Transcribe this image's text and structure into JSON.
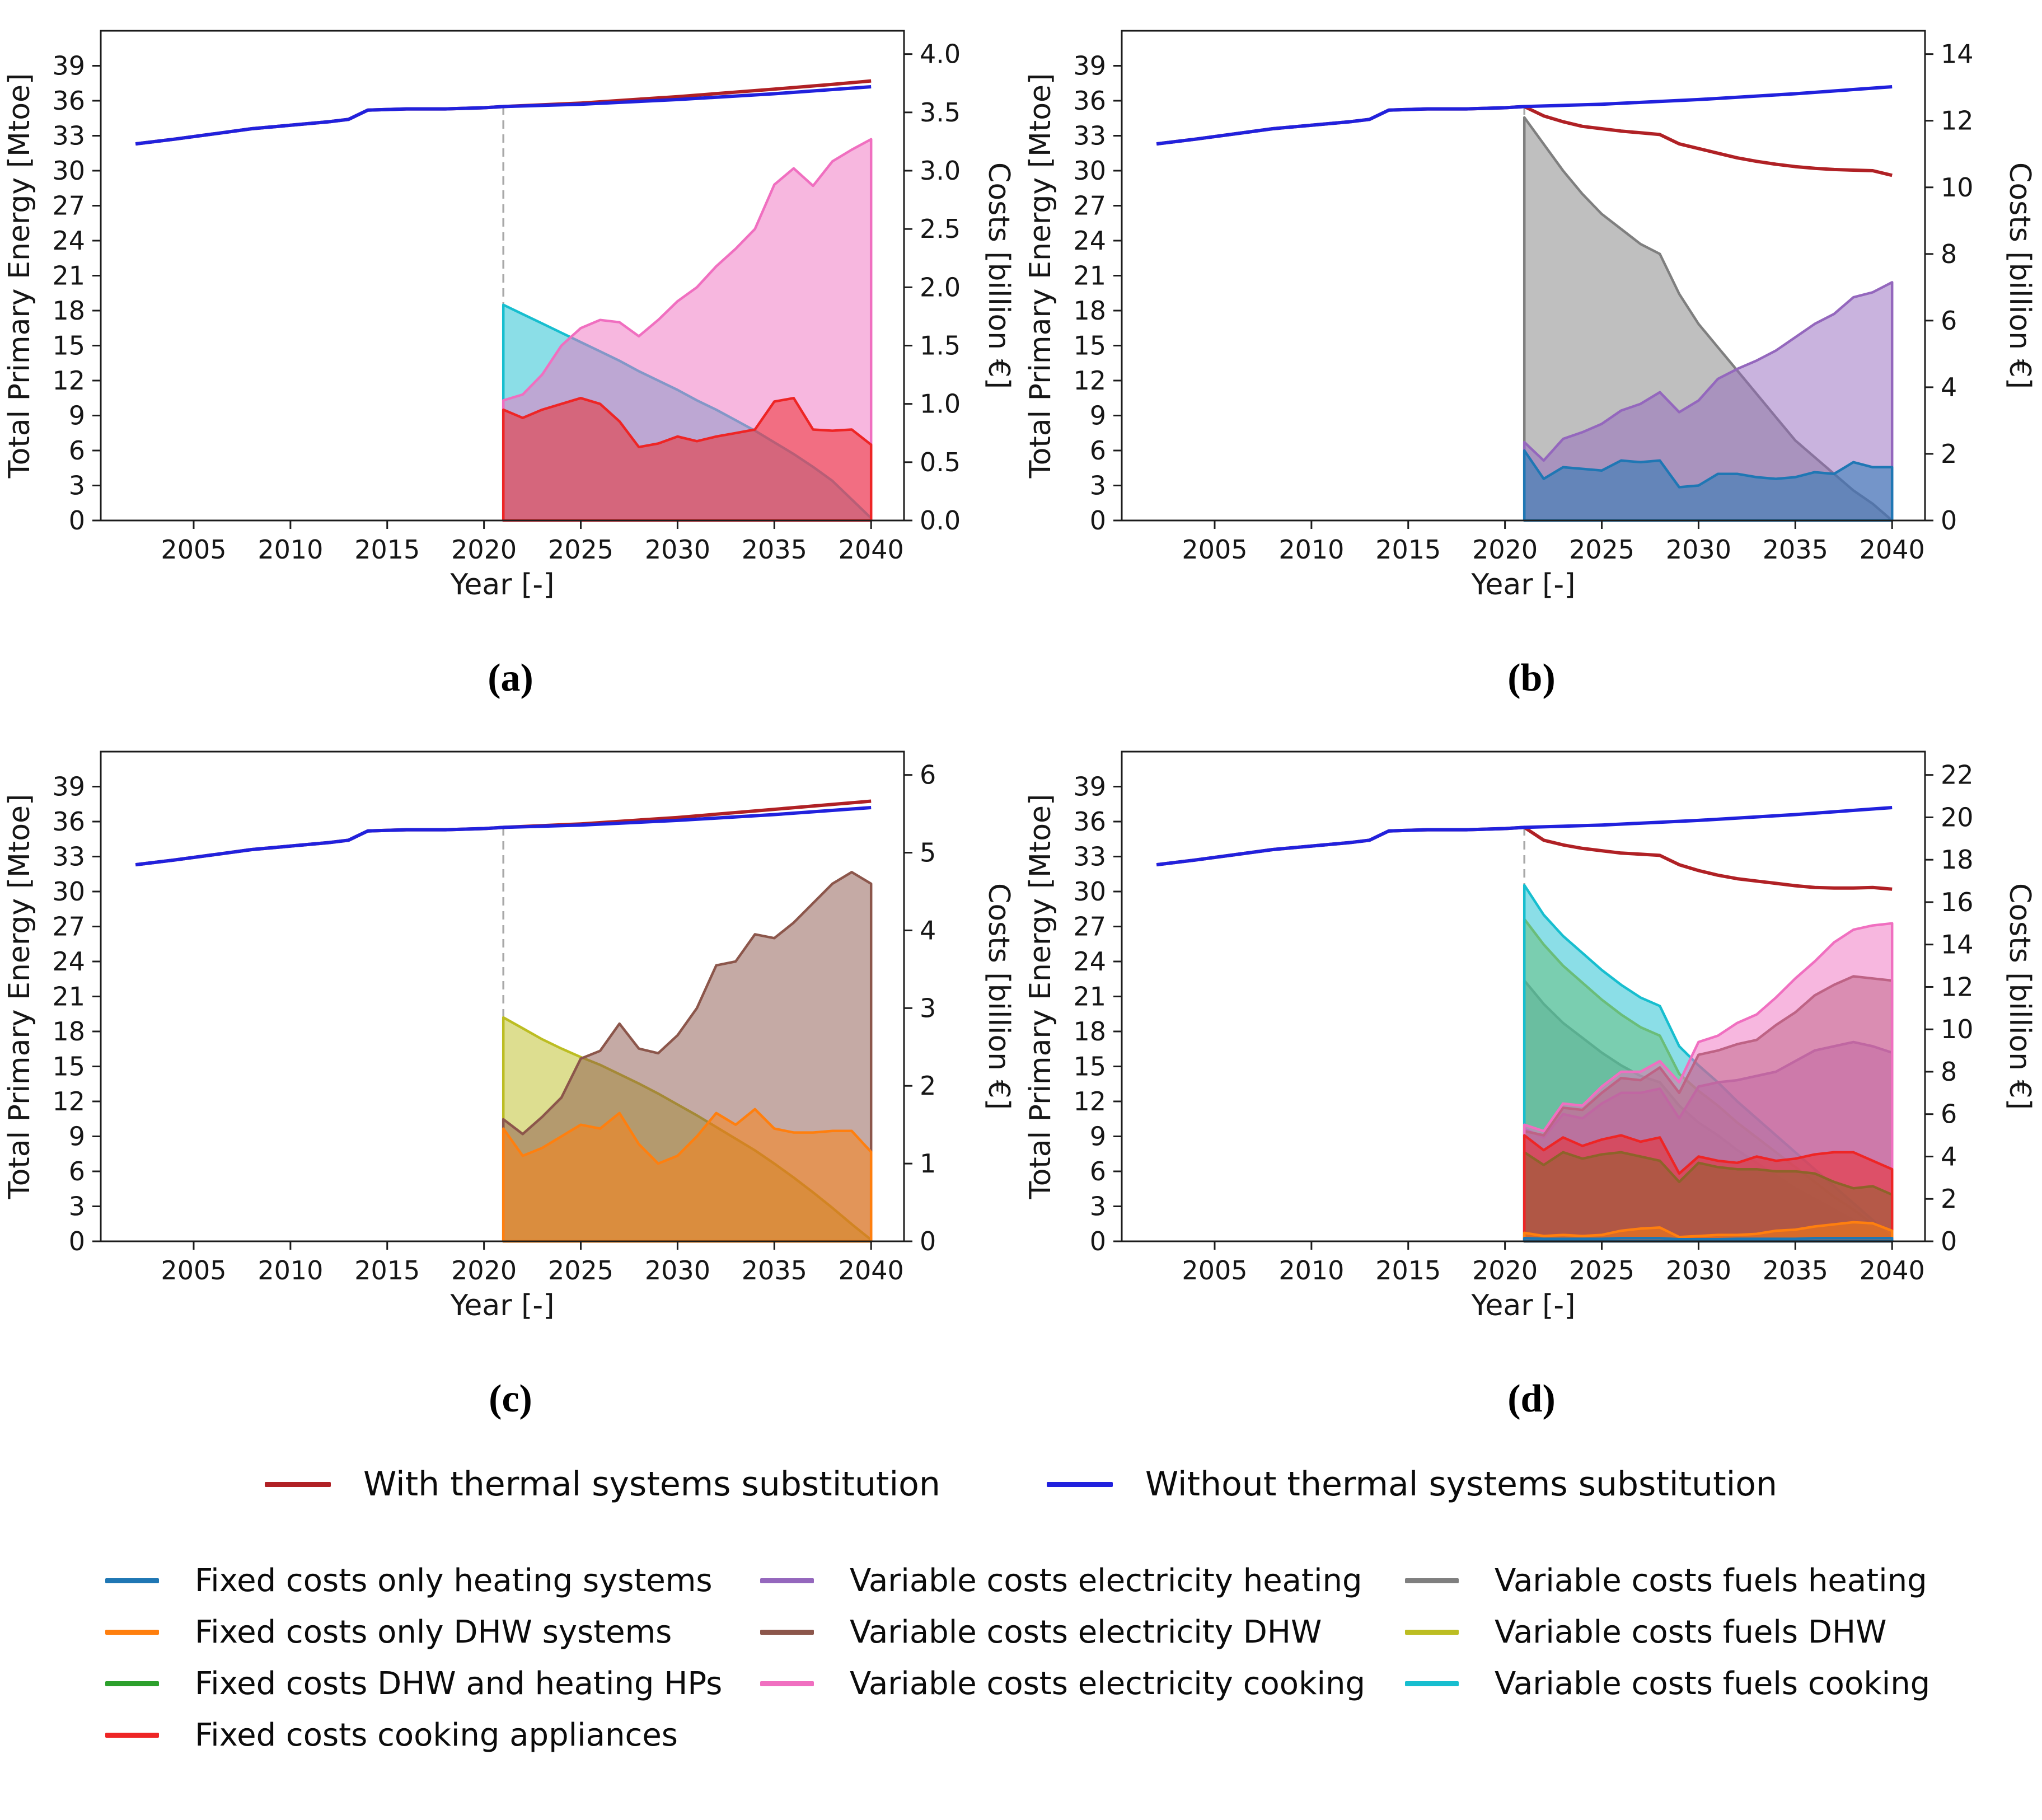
{
  "axes_common": {
    "xlabel": "Year [-]",
    "ylabel_left": "Total Primary Energy [Mtoe]",
    "ylabel_right": "Costs [billion €]",
    "x_ticks": [
      2005,
      2010,
      2015,
      2020,
      2025,
      2030,
      2035,
      2040
    ],
    "left_ticks": [
      0,
      3,
      6,
      9,
      12,
      15,
      18,
      21,
      24,
      27,
      30,
      33,
      36,
      39
    ],
    "x_range": [
      2000.2,
      2041.7
    ],
    "left_axis_max": 42,
    "forecast_start_year": 2021,
    "dashed_line_color": "#a8a8a8",
    "line_without": {
      "label": "Without thermal systems substitution",
      "color": "#2121dd",
      "x": [
        2002,
        2004,
        2006,
        2008,
        2010,
        2012,
        2013,
        2014,
        2016,
        2018,
        2020,
        2021,
        2025,
        2030,
        2035,
        2040
      ],
      "y": [
        32.3,
        32.7,
        33.15,
        33.6,
        33.9,
        34.2,
        34.4,
        35.2,
        35.3,
        35.3,
        35.4,
        35.5,
        35.7,
        36.1,
        36.6,
        37.2
      ]
    },
    "history_x": [
      2002,
      2004,
      2006,
      2008,
      2010,
      2012,
      2013,
      2014,
      2016,
      2018,
      2020,
      2021
    ],
    "history_y": [
      32.3,
      32.7,
      33.15,
      33.6,
      33.9,
      34.2,
      34.4,
      35.2,
      35.3,
      35.3,
      35.4,
      35.5
    ]
  },
  "area_years": [
    2021,
    2022,
    2023,
    2024,
    2025,
    2026,
    2027,
    2028,
    2029,
    2030,
    2031,
    2032,
    2033,
    2034,
    2035,
    2036,
    2037,
    2038,
    2039,
    2040
  ],
  "chart_data": [
    {
      "id": "a",
      "caption": "(a)",
      "type": "area",
      "right_tick_labels": [
        "0.0",
        "0.5",
        "1.0",
        "1.5",
        "2.0",
        "2.5",
        "3.0",
        "3.5",
        "4.0"
      ],
      "right_ticks": [
        0,
        0.5,
        1,
        1.5,
        2,
        2.5,
        3,
        3.5,
        4
      ],
      "right_axis_max": 4.2,
      "areas": [
        {
          "name": "variable-costs-fuels-cooking",
          "color": "#17becf",
          "values": [
            1.85,
            1.77,
            1.69,
            1.61,
            1.53,
            1.45,
            1.37,
            1.28,
            1.2,
            1.12,
            1.03,
            0.95,
            0.86,
            0.77,
            0.67,
            0.57,
            0.46,
            0.34,
            0.18,
            0.02
          ]
        },
        {
          "name": "variable-costs-electricity-cooking",
          "color": "#f06fc0",
          "values": [
            1.03,
            1.08,
            1.25,
            1.5,
            1.65,
            1.72,
            1.7,
            1.58,
            1.72,
            1.88,
            2.0,
            2.18,
            2.33,
            2.5,
            2.88,
            3.02,
            2.87,
            3.08,
            3.18,
            3.27
          ]
        },
        {
          "name": "fixed-costs-cooking-appliances",
          "color": "#ee2525",
          "values": [
            0.95,
            0.88,
            0.95,
            1.0,
            1.05,
            1.0,
            0.85,
            0.63,
            0.66,
            0.72,
            0.68,
            0.72,
            0.75,
            0.78,
            1.02,
            1.05,
            0.78,
            0.77,
            0.78,
            0.65
          ]
        }
      ],
      "line_with": {
        "label": "With thermal systems substitution",
        "color": "#b02125",
        "future_x": [
          2025,
          2030,
          2035,
          2038,
          2040
        ],
        "future_y": [
          35.8,
          36.35,
          37.0,
          37.4,
          37.7
        ]
      }
    },
    {
      "id": "b",
      "caption": "(b)",
      "type": "area",
      "right_tick_labels": [
        "0",
        "2",
        "4",
        "6",
        "8",
        "10",
        "12",
        "14"
      ],
      "right_ticks": [
        0,
        2,
        4,
        6,
        8,
        10,
        12,
        14
      ],
      "right_axis_max": 14.7,
      "areas": [
        {
          "name": "variable-costs-fuels-heating",
          "color": "#7f7f7f",
          "values": [
            12.1,
            11.3,
            10.5,
            9.8,
            9.2,
            8.75,
            8.3,
            8.0,
            6.8,
            5.9,
            5.2,
            4.5,
            3.8,
            3.1,
            2.4,
            1.9,
            1.4,
            0.9,
            0.5,
            0.0
          ]
        },
        {
          "name": "variable-costs-electricity-heating",
          "color": "#9467bd",
          "values": [
            2.35,
            1.8,
            2.45,
            2.65,
            2.9,
            3.3,
            3.5,
            3.85,
            3.25,
            3.6,
            4.25,
            4.55,
            4.8,
            5.1,
            5.5,
            5.9,
            6.2,
            6.7,
            6.85,
            7.15
          ]
        },
        {
          "name": "fixed-costs-only-heating-systems",
          "color": "#1f77b4",
          "values": [
            2.1,
            1.25,
            1.6,
            1.55,
            1.5,
            1.8,
            1.75,
            1.8,
            1.0,
            1.05,
            1.4,
            1.4,
            1.3,
            1.25,
            1.3,
            1.45,
            1.4,
            1.75,
            1.6,
            1.6
          ]
        }
      ],
      "line_with": {
        "label": "With thermal systems substitution",
        "color": "#b02125",
        "future_x": [
          2022,
          2023,
          2024,
          2025,
          2026,
          2027,
          2028,
          2029,
          2030,
          2031,
          2032,
          2033,
          2034,
          2035,
          2036,
          2037,
          2038,
          2039,
          2040
        ],
        "future_y": [
          34.7,
          34.2,
          33.8,
          33.6,
          33.4,
          33.25,
          33.1,
          32.3,
          31.9,
          31.5,
          31.1,
          30.8,
          30.55,
          30.35,
          30.2,
          30.1,
          30.05,
          30.0,
          29.6
        ]
      }
    },
    {
      "id": "c",
      "caption": "(c)",
      "type": "area",
      "right_tick_labels": [
        "0",
        "1",
        "2",
        "3",
        "4",
        "5",
        "6"
      ],
      "right_ticks": [
        0,
        1,
        2,
        3,
        4,
        5,
        6
      ],
      "right_axis_max": 6.3,
      "areas": [
        {
          "name": "variable-costs-fuels-DHW",
          "color": "#bcbd22",
          "values": [
            2.88,
            2.74,
            2.6,
            2.48,
            2.37,
            2.27,
            2.15,
            2.03,
            1.9,
            1.76,
            1.62,
            1.47,
            1.32,
            1.17,
            1.0,
            0.82,
            0.63,
            0.43,
            0.22,
            0.02
          ]
        },
        {
          "name": "variable-costs-electricity-DHW",
          "color": "#8c564b",
          "values": [
            1.57,
            1.38,
            1.6,
            1.85,
            2.35,
            2.45,
            2.8,
            2.48,
            2.42,
            2.65,
            3.0,
            3.55,
            3.6,
            3.95,
            3.9,
            4.1,
            4.35,
            4.6,
            4.75,
            4.6
          ]
        },
        {
          "name": "fixed-costs-only-DHW-systems",
          "color": "#ff7f0e",
          "values": [
            1.45,
            1.1,
            1.2,
            1.35,
            1.5,
            1.45,
            1.65,
            1.25,
            1.0,
            1.1,
            1.35,
            1.65,
            1.5,
            1.7,
            1.45,
            1.4,
            1.4,
            1.42,
            1.42,
            1.15
          ]
        }
      ],
      "line_with": {
        "label": "With thermal systems substitution",
        "color": "#b02125",
        "future_x": [
          2025,
          2030,
          2035,
          2040
        ],
        "future_y": [
          35.8,
          36.35,
          37.05,
          37.75
        ]
      }
    },
    {
      "id": "d",
      "caption": "(d)",
      "type": "area",
      "right_tick_labels": [
        "0",
        "2",
        "4",
        "6",
        "8",
        "10",
        "12",
        "14",
        "16",
        "18",
        "20",
        "22"
      ],
      "right_ticks": [
        0,
        2,
        4,
        6,
        8,
        10,
        12,
        14,
        16,
        18,
        20,
        22
      ],
      "right_axis_max": 23.1,
      "areas": [
        {
          "name": "variable-costs-fuels-heating",
          "color": "#7f7f7f",
          "values": [
            12.3,
            11.2,
            10.3,
            9.6,
            8.9,
            8.3,
            7.8,
            7.5,
            6.4,
            5.6,
            5.0,
            4.3,
            3.7,
            3.1,
            2.5,
            2.0,
            1.5,
            1.0,
            0.6,
            0.0
          ]
        },
        {
          "name": "variable-costs-fuels-DHW",
          "color": "#bcbd22",
          "values": [
            15.2,
            14.0,
            13.0,
            12.2,
            11.4,
            10.7,
            10.1,
            9.7,
            7.9,
            7.1,
            6.4,
            5.6,
            4.9,
            4.2,
            3.5,
            2.8,
            2.1,
            1.5,
            0.8,
            0.05
          ]
        },
        {
          "name": "variable-costs-fuels-cooking",
          "color": "#17becf",
          "values": [
            16.8,
            15.4,
            14.4,
            13.6,
            12.8,
            12.1,
            11.5,
            11.1,
            9.2,
            8.3,
            7.5,
            6.6,
            5.8,
            5.0,
            4.2,
            3.4,
            2.6,
            1.8,
            1.0,
            0.1
          ]
        },
        {
          "name": "variable-costs-electricity-heating",
          "color": "#9467bd",
          "values": [
            5.3,
            4.9,
            6.0,
            5.8,
            6.5,
            7.0,
            7.0,
            7.2,
            5.8,
            7.3,
            7.5,
            7.6,
            7.8,
            8.0,
            8.5,
            9.0,
            9.2,
            9.4,
            9.2,
            8.9
          ]
        },
        {
          "name": "variable-costs-electricity-DHW",
          "color": "#8c564b",
          "values": [
            5.2,
            5.0,
            6.3,
            6.2,
            7.0,
            7.7,
            7.6,
            8.2,
            7.0,
            8.8,
            9.0,
            9.3,
            9.5,
            10.2,
            10.8,
            11.6,
            12.1,
            12.5,
            12.4,
            12.3
          ]
        },
        {
          "name": "variable-costs-electricity-cooking",
          "color": "#f06fc0",
          "values": [
            5.5,
            5.2,
            6.5,
            6.4,
            7.3,
            8.0,
            8.0,
            8.5,
            7.5,
            9.4,
            9.7,
            10.3,
            10.7,
            11.5,
            12.4,
            13.2,
            14.1,
            14.7,
            14.9,
            15.0
          ]
        },
        {
          "name": "fixed-costs-DHW-and-heating-HPs",
          "color": "#2ca02c",
          "values": [
            4.2,
            3.6,
            4.2,
            3.9,
            4.1,
            4.2,
            4.0,
            3.8,
            2.8,
            3.7,
            3.5,
            3.4,
            3.4,
            3.3,
            3.3,
            3.2,
            2.8,
            2.5,
            2.6,
            2.2
          ]
        },
        {
          "name": "fixed-costs-cooking-appliances",
          "color": "#ee2525",
          "values": [
            5.0,
            4.3,
            4.9,
            4.5,
            4.8,
            5.0,
            4.7,
            4.9,
            3.2,
            4.0,
            3.8,
            3.7,
            4.0,
            3.8,
            3.9,
            4.1,
            4.2,
            4.2,
            3.8,
            3.4
          ]
        },
        {
          "name": "fixed-costs-only-DHW-systems",
          "color": "#ff7f0e",
          "values": [
            0.4,
            0.25,
            0.3,
            0.25,
            0.3,
            0.5,
            0.6,
            0.65,
            0.2,
            0.25,
            0.3,
            0.3,
            0.35,
            0.5,
            0.55,
            0.7,
            0.8,
            0.9,
            0.85,
            0.5
          ]
        },
        {
          "name": "fixed-costs-only-heating-systems",
          "color": "#1f77b4",
          "values": [
            0.15,
            0.12,
            0.12,
            0.12,
            0.12,
            0.15,
            0.15,
            0.15,
            0.1,
            0.1,
            0.1,
            0.12,
            0.12,
            0.12,
            0.12,
            0.15,
            0.15,
            0.15,
            0.15,
            0.15
          ]
        }
      ],
      "line_with": {
        "label": "With thermal systems substitution",
        "color": "#b02125",
        "future_x": [
          2022,
          2023,
          2024,
          2025,
          2026,
          2027,
          2028,
          2029,
          2030,
          2031,
          2032,
          2033,
          2034,
          2035,
          2036,
          2037,
          2038,
          2039,
          2040
        ],
        "future_y": [
          34.4,
          34.0,
          33.7,
          33.5,
          33.3,
          33.2,
          33.1,
          32.3,
          31.8,
          31.4,
          31.1,
          30.9,
          30.7,
          30.5,
          30.35,
          30.3,
          30.3,
          30.35,
          30.2
        ]
      }
    }
  ],
  "captions": {
    "a": "(a)",
    "b": "(b)",
    "c": "(c)",
    "d": "(d)"
  },
  "legend_top": {
    "items": [
      {
        "label": "With thermal systems substitution",
        "color": "#b02125"
      },
      {
        "label": "Without thermal systems substitution",
        "color": "#2121dd"
      }
    ]
  },
  "legend_bottom": {
    "columns": [
      [
        {
          "label": "Fixed costs only heating systems",
          "color": "#1f77b4"
        },
        {
          "label": "Fixed costs only DHW systems",
          "color": "#ff7f0e"
        },
        {
          "label": "Fixed costs DHW and heating HPs",
          "color": "#2ca02c"
        },
        {
          "label": "Fixed costs cooking appliances",
          "color": "#ee2525"
        }
      ],
      [
        {
          "label": "Variable costs electricity heating",
          "color": "#9467bd"
        },
        {
          "label": "Variable costs electricity DHW",
          "color": "#8c564b"
        },
        {
          "label": "Variable costs electricity cooking",
          "color": "#f06fc0"
        }
      ],
      [
        {
          "label": "Variable costs fuels heating",
          "color": "#7f7f7f"
        },
        {
          "label": "Variable costs fuels DHW",
          "color": "#bcbd22"
        },
        {
          "label": "Variable costs fuels cooking",
          "color": "#17becf"
        }
      ]
    ]
  }
}
